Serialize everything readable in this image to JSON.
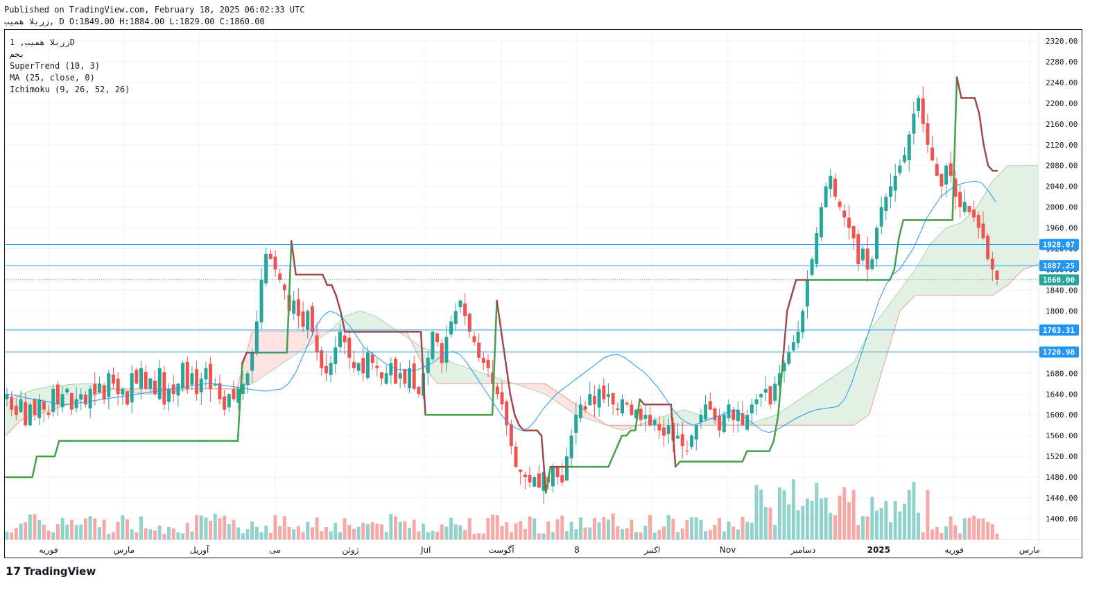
{
  "header": {
    "published": "Published on TradingView.com, February 18, 2025 06:02:33 UTC",
    "symbol_line": "زربلا همیب, D O:1849.00 H:1884.00 L:1829.00 C:1860.00"
  },
  "legend": {
    "symbol": "زربلا همیب, 1D",
    "exchange": "بجم",
    "supertrend": "SuperTrend (10, 3)",
    "ma": "MA (25, close, 0)",
    "ichimoku": "Ichimoku (9, 26, 52, 26)"
  },
  "footer": {
    "brand": "TradingView",
    "mark": "17"
  },
  "colors": {
    "up": "#26a69a",
    "down": "#ef5350",
    "supertrend_up": "#43a047",
    "supertrend_down": "#a04848",
    "ma": "#2196f3",
    "hline": "#2196f3",
    "cloud_up": "#e3f1e4",
    "cloud_down": "#fde3e1",
    "price_label": "#26a69a"
  },
  "chart_data": {
    "type": "candlestick",
    "y_axis": {
      "min": 1360,
      "max": 2340,
      "ticks": [
        2320,
        2280,
        2240,
        2200,
        2160,
        2120,
        2080,
        2040,
        2000,
        1960,
        1920,
        1880,
        1840,
        1800,
        1760,
        1720,
        1680,
        1640,
        1600,
        1560,
        1520,
        1480,
        1440,
        1400
      ]
    },
    "x_axis_labels": [
      "فوریه",
      "مارس",
      "آوریل",
      "می",
      "ژوئن",
      "Jul",
      "آگوست",
      "8",
      "اکتبر",
      "Nov",
      "دسامبر",
      "2025",
      "فوریه",
      "مارس"
    ],
    "horizontal_lines": [
      {
        "value": 1928.07,
        "label": "1928.07"
      },
      {
        "value": 1887.25,
        "label": "1887.25"
      },
      {
        "value": 1763.31,
        "label": "1763.31"
      },
      {
        "value": 1720.98,
        "label": "1720.98"
      }
    ],
    "last_price": {
      "value": 1860.0,
      "label": "1860.00"
    },
    "close_series": [
      1640,
      1610,
      1600,
      1630,
      1580,
      1620,
      1600,
      1630,
      1610,
      1600,
      1650,
      1620,
      1640,
      1650,
      1610,
      1630,
      1640,
      1620,
      1650,
      1640,
      1660,
      1630,
      1680,
      1660,
      1640,
      1650,
      1620,
      1680,
      1660,
      1690,
      1650,
      1670,
      1640,
      1690,
      1620,
      1650,
      1640,
      1660,
      1700,
      1650,
      1680,
      1640,
      1670,
      1690,
      1650,
      1660,
      1630,
      1610,
      1640,
      1630,
      1650,
      1660,
      1680,
      1720,
      1780,
      1860,
      1910,
      1900,
      1880,
      1860,
      1840,
      1800,
      1820,
      1790,
      1770,
      1800,
      1760,
      1720,
      1690,
      1680,
      1700,
      1730,
      1760,
      1740,
      1710,
      1690,
      1700,
      1680,
      1720,
      1700,
      1690,
      1670,
      1680,
      1700,
      1660,
      1680,
      1660,
      1690,
      1650,
      1640,
      1680,
      1710,
      1760,
      1740,
      1700,
      1750,
      1780,
      1800,
      1820,
      1790,
      1760,
      1740,
      1710,
      1700,
      1690,
      1660,
      1640,
      1620,
      1580,
      1540,
      1500,
      1490,
      1480,
      1470,
      1480,
      1460,
      1490,
      1470,
      1500,
      1480,
      1470,
      1520,
      1560,
      1600,
      1620,
      1610,
      1640,
      1620,
      1650,
      1630,
      1640,
      1620,
      1610,
      1630,
      1620,
      1600,
      1610,
      1590,
      1600,
      1580,
      1590,
      1570,
      1560,
      1580,
      1550,
      1560,
      1540,
      1530,
      1560,
      1580,
      1600,
      1620,
      1610,
      1590,
      1570,
      1600,
      1620,
      1590,
      1610,
      1580,
      1600,
      1620,
      1630,
      1640,
      1650,
      1620,
      1660,
      1680,
      1700,
      1720,
      1740,
      1760,
      1800,
      1860,
      1900,
      1950,
      2000,
      2040,
      2060,
      2020,
      2000,
      1980,
      1960,
      1940,
      1890,
      1920,
      1880,
      1900,
      1960,
      2000,
      2020,
      2040,
      2060,
      2080,
      2100,
      2140,
      2180,
      2210,
      2160,
      2120,
      2090,
      2060,
      2040,
      2080,
      2060,
      2020,
      2000,
      2010,
      1990,
      1980,
      1960,
      1940,
      1900,
      1880,
      1860
    ],
    "supertrend": [
      1480,
      1480,
      1480,
      1480,
      1480,
      1480,
      1480,
      1520,
      1520,
      1520,
      1520,
      1520,
      1550,
      1550,
      1550,
      1550,
      1550,
      1550,
      1550,
      1550,
      1550,
      1550,
      1550,
      1550,
      1550,
      1550,
      1550,
      1550,
      1550,
      1550,
      1550,
      1550,
      1550,
      1550,
      1550,
      1550,
      1550,
      1550,
      1550,
      1550,
      1550,
      1550,
      1550,
      1550,
      1550,
      1550,
      1550,
      1550,
      1550,
      1550,
      1550,
      1550,
      1550,
      1700,
      1720,
      1720,
      1720,
      1720,
      1720,
      1720,
      1720,
      1720,
      1720,
      1720,
      1935,
      1870,
      1870,
      1870,
      1870,
      1870,
      1870,
      1870,
      1850,
      1850,
      1830,
      1800,
      1760,
      1760,
      1760,
      1760,
      1760,
      1760,
      1760,
      1760,
      1760,
      1760,
      1760,
      1760,
      1760,
      1760,
      1760,
      1760,
      1760,
      1760,
      1600,
      1600,
      1600,
      1600,
      1600,
      1600,
      1600,
      1600,
      1600,
      1600,
      1600,
      1600,
      1600,
      1600,
      1600,
      1600,
      1820,
      1760,
      1700,
      1640,
      1600,
      1580,
      1570,
      1570,
      1570,
      1570,
      1560,
      1450,
      1500,
      1500,
      1500,
      1500,
      1500,
      1500,
      1500,
      1500,
      1500,
      1500,
      1500,
      1500,
      1500,
      1500,
      1520,
      1540,
      1560,
      1560,
      1570,
      1570,
      1630,
      1620,
      1620,
      1620,
      1620,
      1620,
      1620,
      1620,
      1500,
      1510,
      1510,
      1510,
      1510,
      1510,
      1510,
      1510,
      1510,
      1510,
      1510,
      1510,
      1510,
      1510,
      1510,
      1510,
      1530,
      1530,
      1530,
      1530,
      1530,
      1530,
      1550,
      1600,
      1700,
      1800,
      1830,
      1860,
      1860,
      1860,
      1860,
      1860,
      1860,
      1860,
      1860,
      1860,
      1860,
      1860,
      1860,
      1860,
      1860,
      1860,
      1860,
      1860,
      1860,
      1860,
      1860,
      1860,
      1860,
      1880,
      1940,
      1975,
      1975,
      1975,
      1975,
      1975,
      1975,
      1975,
      1975,
      1975,
      1975,
      1975,
      1975,
      2250,
      2210,
      2210,
      2210,
      2210,
      2180,
      2120,
      2080,
      2070,
      2070
    ],
    "ma_series": [
      1640,
      1638,
      1635,
      1632,
      1630,
      1628,
      1625,
      1622,
      1620,
      1620,
      1622,
      1624,
      1626,
      1628,
      1630,
      1632,
      1634,
      1636,
      1638,
      1640,
      1642,
      1644,
      1646,
      1648,
      1650,
      1652,
      1654,
      1656,
      1658,
      1660,
      1660,
      1658,
      1656,
      1654,
      1652,
      1650,
      1648,
      1646,
      1646,
      1648,
      1650,
      1660,
      1680,
      1710,
      1740,
      1770,
      1790,
      1800,
      1795,
      1785,
      1770,
      1750,
      1730,
      1720,
      1710,
      1700,
      1692,
      1688,
      1686,
      1685,
      1688,
      1694,
      1700,
      1710,
      1720,
      1722,
      1716,
      1700,
      1680,
      1660,
      1640,
      1620,
      1600,
      1585,
      1575,
      1570,
      1575,
      1590,
      1610,
      1625,
      1640,
      1650,
      1660,
      1670,
      1680,
      1690,
      1700,
      1710,
      1715,
      1716,
      1710,
      1700,
      1690,
      1680,
      1665,
      1650,
      1630,
      1610,
      1595,
      1585,
      1580,
      1585,
      1590,
      1595,
      1600,
      1605,
      1610,
      1600,
      1590,
      1580,
      1570,
      1566,
      1570,
      1578,
      1586,
      1594,
      1600,
      1606,
      1610,
      1612,
      1614,
      1616,
      1630,
      1660,
      1700,
      1740,
      1780,
      1820,
      1850,
      1870,
      1880,
      1900,
      1920,
      1950,
      1980,
      2000,
      2020,
      2030,
      2040,
      2045,
      2048,
      2050,
      2046,
      2030,
      2010
    ],
    "ichimoku_span_a": [
      1620,
      1640,
      1650,
      1655,
      1658,
      1660,
      1660,
      1650,
      1645,
      1640,
      1640,
      1645,
      1650,
      1650,
      1650,
      1650,
      1660,
      1680,
      1700,
      1720,
      1740,
      1760,
      1790,
      1800,
      1790,
      1770,
      1750,
      1730,
      1720,
      1700,
      1690,
      1680,
      1670,
      1660,
      1650,
      1640,
      1620,
      1600,
      1590,
      1580,
      1570,
      1580,
      1590,
      1600,
      1610,
      1600,
      1590,
      1580,
      1580,
      1590,
      1600,
      1620,
      1640,
      1660,
      1680,
      1700,
      1760,
      1800,
      1840,
      1880,
      1930,
      1960,
      1970,
      2000,
      2050,
      2080,
      2080,
      2080
    ],
    "ichimoku_span_b": [
      1560,
      1590,
      1600,
      1610,
      1620,
      1630,
      1640,
      1650,
      1650,
      1650,
      1650,
      1650,
      1650,
      1650,
      1650,
      1650,
      1760,
      1760,
      1760,
      1760,
      1760,
      1760,
      1760,
      1760,
      1760,
      1760,
      1760,
      1700,
      1660,
      1660,
      1660,
      1660,
      1660,
      1660,
      1660,
      1660,
      1640,
      1620,
      1600,
      1580,
      1580,
      1580,
      1580,
      1580,
      1580,
      1580,
      1580,
      1580,
      1580,
      1580,
      1580,
      1580,
      1580,
      1580,
      1580,
      1580,
      1600,
      1700,
      1800,
      1830,
      1830,
      1830,
      1830,
      1830,
      1830,
      1850,
      1880,
      1890
    ]
  }
}
